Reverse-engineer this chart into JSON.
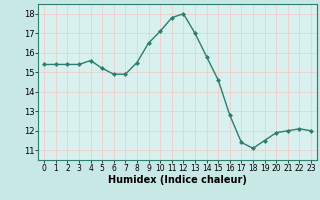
{
  "x": [
    0,
    1,
    2,
    3,
    4,
    5,
    6,
    7,
    8,
    9,
    10,
    11,
    12,
    13,
    14,
    15,
    16,
    17,
    18,
    19,
    20,
    21,
    22,
    23
  ],
  "y": [
    15.4,
    15.4,
    15.4,
    15.4,
    15.6,
    15.2,
    14.9,
    14.9,
    15.5,
    16.5,
    17.1,
    17.8,
    18.0,
    17.0,
    15.8,
    14.6,
    12.8,
    11.4,
    11.1,
    11.5,
    11.9,
    12.0,
    12.1,
    12.0
  ],
  "xlabel": "Humidex (Indice chaleur)",
  "ylim": [
    10.5,
    18.5
  ],
  "xlim": [
    -0.5,
    23.5
  ],
  "yticks": [
    11,
    12,
    13,
    14,
    15,
    16,
    17,
    18
  ],
  "xticks": [
    0,
    1,
    2,
    3,
    4,
    5,
    6,
    7,
    8,
    9,
    10,
    11,
    12,
    13,
    14,
    15,
    16,
    17,
    18,
    19,
    20,
    21,
    22,
    23
  ],
  "line_color": "#2e7d6e",
  "marker_color": "#2e7d6e",
  "bg_color": "#c8e8e5",
  "grid_color_major": "#f0c8c8",
  "grid_color_minor": "#d8f0ee",
  "axes_bg": "#d8f0ee"
}
